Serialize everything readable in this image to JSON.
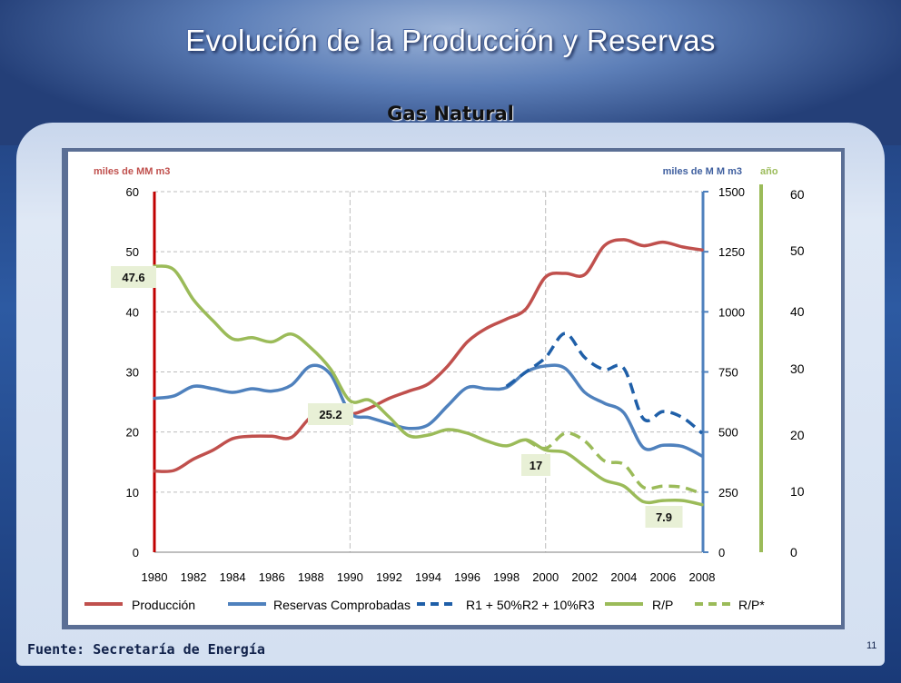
{
  "slide": {
    "title": "Evolución de la Producción y Reservas",
    "subtitle": "Gas Natural",
    "footer": "Fuente: Secretaría de Energía",
    "page_number": "11"
  },
  "colors": {
    "produccion": "#c0504d",
    "reservas": "#4f81bd",
    "r1": "#1f5fa8",
    "rp": "#9bbb59",
    "grid": "#bcbcbc"
  },
  "chart_data": {
    "type": "line",
    "axes": {
      "left": {
        "label": "miles de MM m3",
        "ticks": [
          "0",
          "10",
          "20",
          "30",
          "40",
          "50",
          "60"
        ],
        "range": [
          0,
          60
        ]
      },
      "right": {
        "label": "miles de M M m3",
        "ticks": [
          "0",
          "250",
          "500",
          "750",
          "1000",
          "1250",
          "1500"
        ],
        "range": [
          0,
          1500
        ]
      },
      "third": {
        "label": "año",
        "ticks": [
          "0",
          "10",
          "20",
          "30",
          "40",
          "50",
          "60"
        ],
        "range": [
          0,
          60
        ]
      },
      "x": {
        "ticks": [
          "1980",
          "1982",
          "1984",
          "1986",
          "1988",
          "1990",
          "1992",
          "1994",
          "1996",
          "1998",
          "2000",
          "2002",
          "2004",
          "2006",
          "2008"
        ],
        "range": [
          1980,
          2008
        ]
      }
    },
    "grid": "dashed horizontal and vertical",
    "legend_position": "bottom",
    "series": [
      {
        "name": "Producción",
        "axis": "left",
        "style": "solid",
        "x": [
          1980,
          1981,
          1982,
          1983,
          1984,
          1985,
          1986,
          1987,
          1988,
          1989,
          1990,
          1991,
          1992,
          1993,
          1994,
          1995,
          1996,
          1997,
          1998,
          1999,
          2000,
          2001,
          2002,
          2003,
          2004,
          2005,
          2006,
          2007,
          2008
        ],
        "y": [
          13.5,
          13.6,
          15.5,
          17.0,
          18.9,
          19.3,
          19.3,
          19.1,
          22.5,
          24.0,
          23.0,
          24.0,
          25.6,
          26.8,
          28.0,
          31.0,
          35.0,
          37.3,
          38.8,
          40.5,
          45.8,
          46.4,
          46.2,
          51.0,
          52.0,
          51.0,
          51.6,
          50.8,
          50.3
        ]
      },
      {
        "name": "Reservas Comprobadas",
        "axis": "right",
        "style": "solid",
        "x": [
          1980,
          1981,
          1982,
          1983,
          1984,
          1985,
          1986,
          1987,
          1988,
          1989,
          1990,
          1991,
          1992,
          1993,
          1994,
          1995,
          1996,
          1997,
          1998,
          1999,
          2000,
          2001,
          2002,
          2003,
          2004,
          2005,
          2006,
          2007,
          2008
        ],
        "y": [
          640,
          650,
          690,
          680,
          665,
          680,
          670,
          695,
          775,
          740,
          580,
          560,
          535,
          515,
          530,
          610,
          685,
          680,
          685,
          750,
          775,
          765,
          665,
          620,
          580,
          435,
          445,
          440,
          400
        ]
      },
      {
        "name": "R1 + 50%R2 + 10%R3",
        "axis": "right",
        "style": "dashed",
        "x": [
          1998,
          1999,
          2000,
          2001,
          2002,
          2003,
          2004,
          2005,
          2006,
          2007,
          2008
        ],
        "y": [
          690,
          750,
          810,
          910,
          810,
          760,
          765,
          555,
          585,
          560,
          495
        ]
      },
      {
        "name": "R/P",
        "axis": "third",
        "style": "solid",
        "x": [
          1980,
          1981,
          1982,
          1983,
          1984,
          1985,
          1986,
          1987,
          1988,
          1989,
          1990,
          1991,
          1992,
          1993,
          1994,
          1995,
          1996,
          1997,
          1998,
          1999,
          2000,
          2001,
          2002,
          2003,
          2004,
          2005,
          2006,
          2007,
          2008
        ],
        "y": [
          47.6,
          47.0,
          42.0,
          38.5,
          35.5,
          35.7,
          35.0,
          36.3,
          34.0,
          30.5,
          25.2,
          25.3,
          22.5,
          19.4,
          19.5,
          20.4,
          19.8,
          18.5,
          17.7,
          18.7,
          17.0,
          16.6,
          14.3,
          12.0,
          11.0,
          8.4,
          8.6,
          8.6,
          7.9
        ]
      },
      {
        "name": "R/P*",
        "axis": "third",
        "style": "dashed",
        "x": [
          1999,
          2000,
          2001,
          2002,
          2003,
          2004,
          2005,
          2006,
          2007,
          2008
        ],
        "y": [
          18.7,
          17.3,
          19.8,
          18.5,
          15.2,
          14.6,
          10.8,
          11.0,
          10.8,
          9.7
        ]
      }
    ],
    "annotations": [
      "47.6",
      "25.2",
      "17",
      "7.9"
    ]
  }
}
